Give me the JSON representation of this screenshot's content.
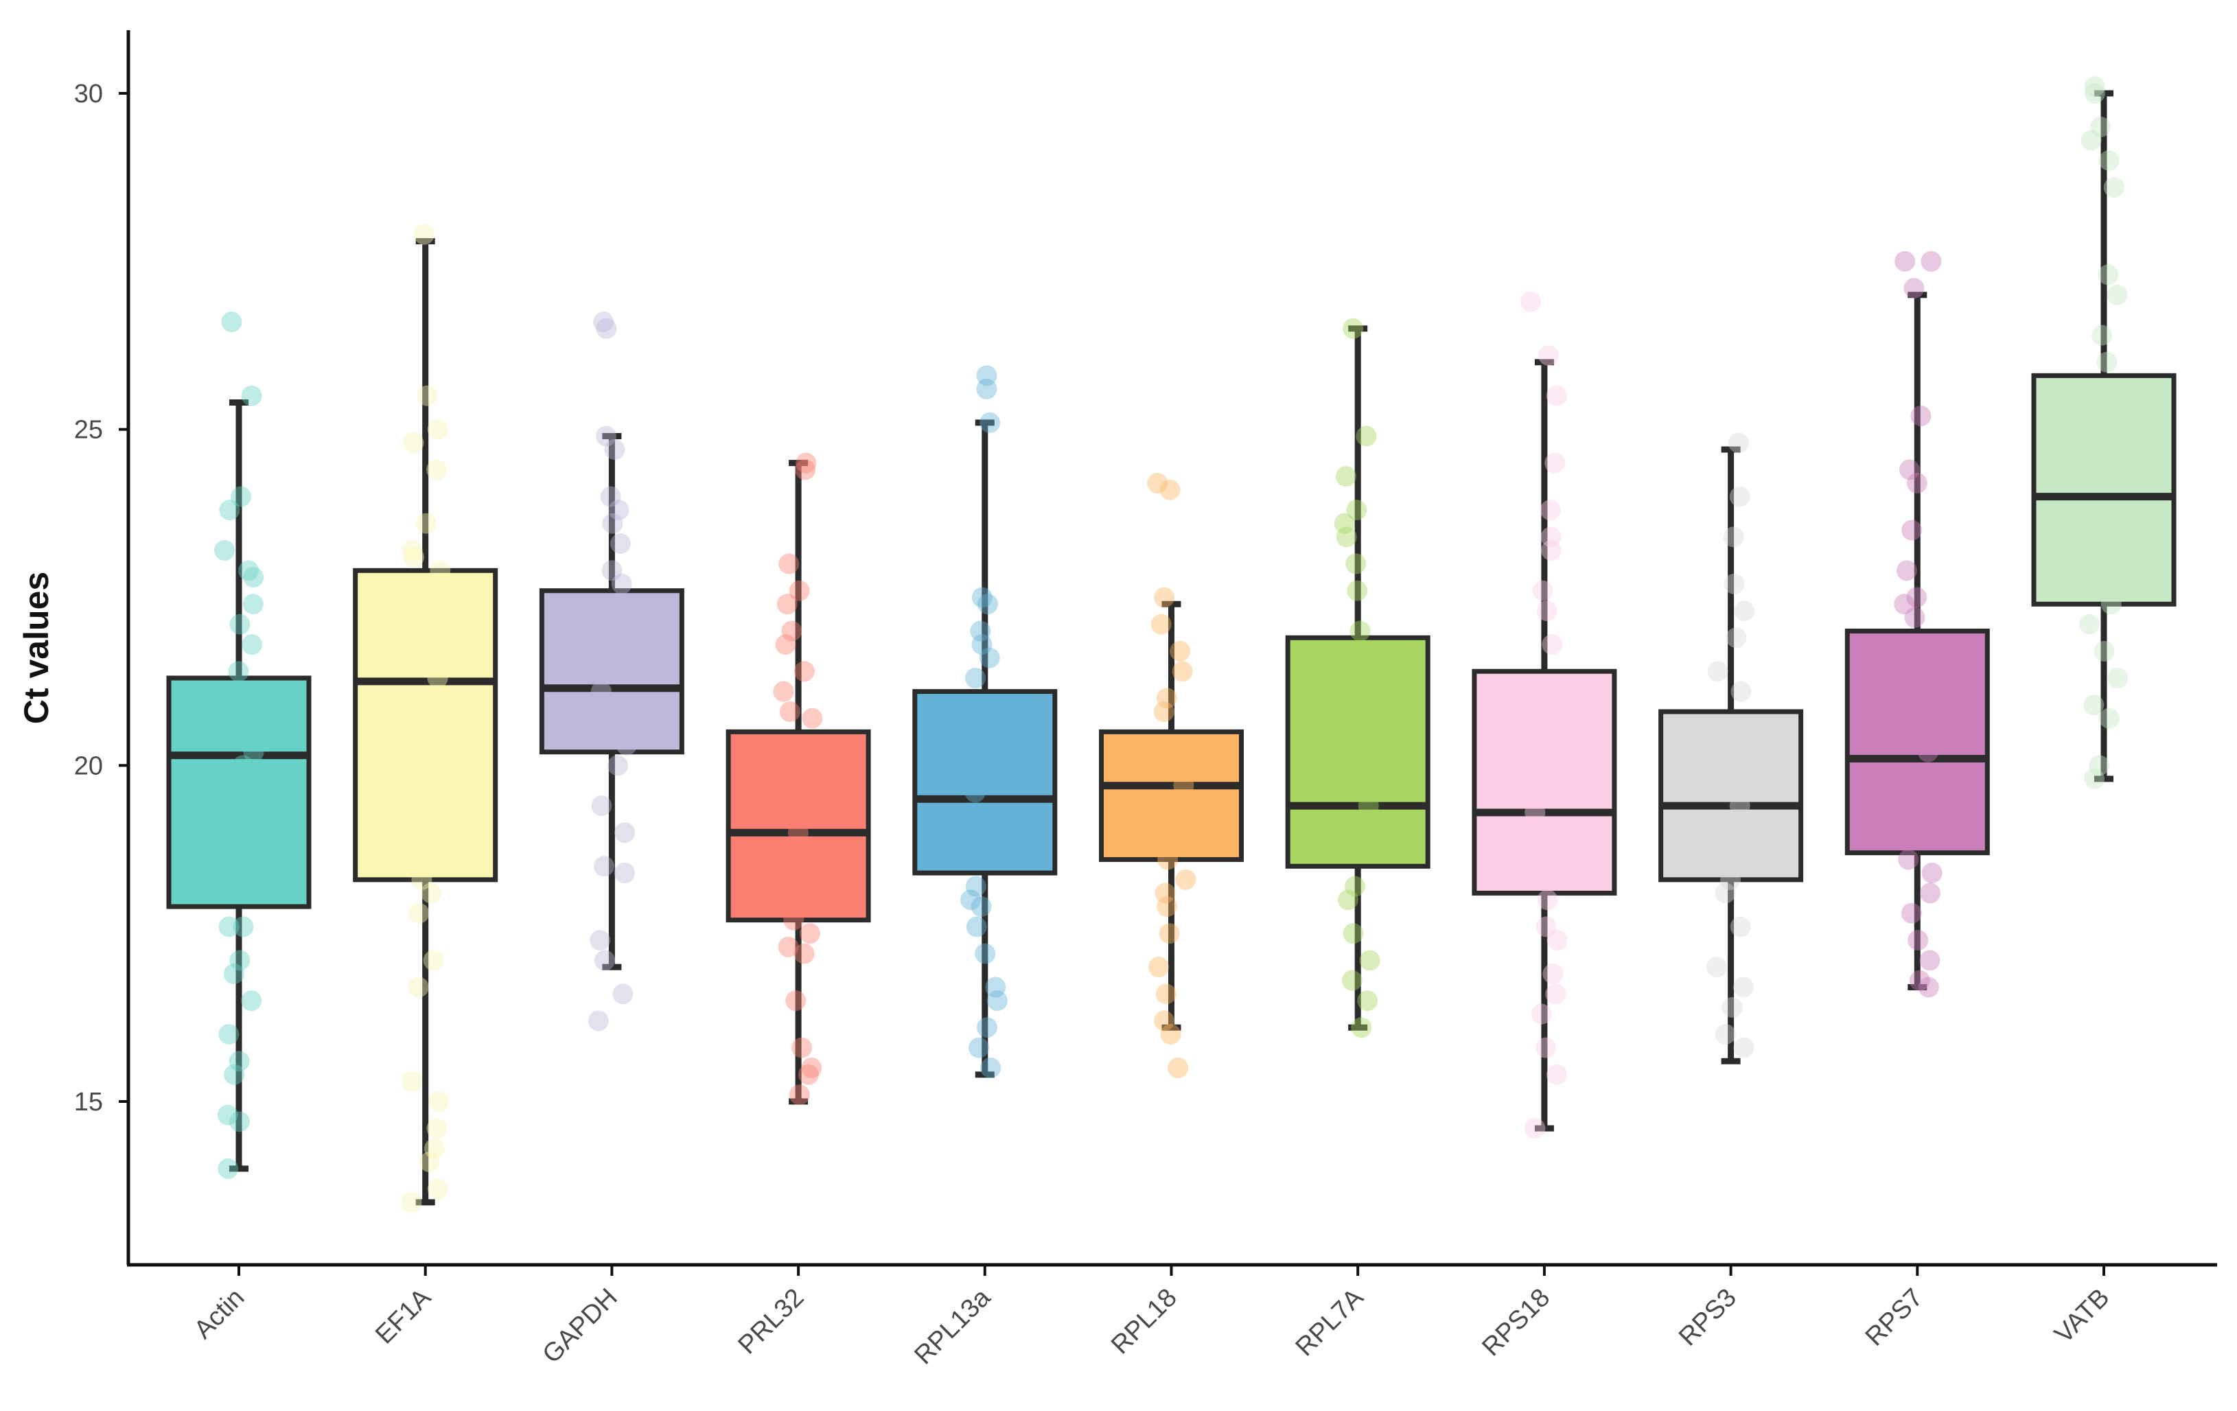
{
  "chart_data": {
    "type": "box",
    "title": "",
    "xlabel": "",
    "ylabel": "Ct values",
    "ylim": [
      12.5,
      31
    ],
    "yticks": [
      15,
      20,
      25,
      30
    ],
    "categories": [
      "Actin",
      "EF1A",
      "GAPDH",
      "PRL32",
      "RPL13a",
      "RPL18",
      "RPL7A",
      "RPS18",
      "RPS3",
      "RPS7",
      "VATB"
    ],
    "colors": [
      "#66d1c6",
      "#fbf6b2",
      "#beb8da",
      "#fb8072",
      "#64b2d6",
      "#fdb462",
      "#a6d65f",
      "#fccde5",
      "#d9d9d9",
      "#ca7fbb",
      "#c6e8c4"
    ],
    "boxes": [
      {
        "name": "Actin",
        "whisker_low": 14.0,
        "q1": 17.9,
        "median": 20.15,
        "q3": 21.3,
        "whisker_high": 25.4
      },
      {
        "name": "EF1A",
        "whisker_low": 13.5,
        "q1": 18.3,
        "median": 21.25,
        "q3": 22.9,
        "whisker_high": 27.8
      },
      {
        "name": "GAPDH",
        "whisker_low": 17.0,
        "q1": 20.2,
        "median": 21.15,
        "q3": 22.6,
        "whisker_high": 24.9
      },
      {
        "name": "PRL32",
        "whisker_low": 15.0,
        "q1": 17.7,
        "median": 19.0,
        "q3": 20.5,
        "whisker_high": 24.5
      },
      {
        "name": "RPL13a",
        "whisker_low": 15.4,
        "q1": 18.4,
        "median": 19.5,
        "q3": 21.1,
        "whisker_high": 25.1
      },
      {
        "name": "RPL18",
        "whisker_low": 16.1,
        "q1": 18.6,
        "median": 19.7,
        "q3": 20.5,
        "whisker_high": 22.4
      },
      {
        "name": "RPL7A",
        "whisker_low": 16.1,
        "q1": 18.5,
        "median": 19.4,
        "q3": 21.9,
        "whisker_high": 26.5
      },
      {
        "name": "RPS18",
        "whisker_low": 14.6,
        "q1": 18.1,
        "median": 19.3,
        "q3": 21.4,
        "whisker_high": 26.0
      },
      {
        "name": "RPS3",
        "whisker_low": 15.6,
        "q1": 18.3,
        "median": 19.4,
        "q3": 20.8,
        "whisker_high": 24.7
      },
      {
        "name": "RPS7",
        "whisker_low": 16.7,
        "q1": 18.7,
        "median": 20.1,
        "q3": 22.0,
        "whisker_high": 27.0
      },
      {
        "name": "VATB",
        "whisker_low": 19.8,
        "q1": 22.4,
        "median": 24.0,
        "q3": 25.8,
        "whisker_high": 30.0
      }
    ],
    "points": [
      [
        26.6,
        25.5,
        24.0,
        23.8,
        23.2,
        22.9,
        22.8,
        22.4,
        22.1,
        21.8,
        21.4,
        20.2,
        20.0,
        17.6,
        17.6,
        17.1,
        16.9,
        16.5,
        16.0,
        15.6,
        15.4,
        14.8,
        14.7,
        14.0
      ],
      [
        27.9,
        25.5,
        25.0,
        24.8,
        24.4,
        23.6,
        23.2,
        23.1,
        22.9,
        21.3,
        18.3,
        18.1,
        17.8,
        17.1,
        16.7,
        15.3,
        15.0,
        14.6,
        14.3,
        14.1,
        13.7,
        13.5
      ],
      [
        26.6,
        26.5,
        24.9,
        24.7,
        24.0,
        23.8,
        23.6,
        23.3,
        22.9,
        22.7,
        22.1,
        21.1,
        20.8,
        20.3,
        20.0,
        19.4,
        19.0,
        18.5,
        18.4,
        17.4,
        17.1,
        16.6,
        16.2
      ],
      [
        24.5,
        24.4,
        23.0,
        22.6,
        22.4,
        22.0,
        21.8,
        21.4,
        21.1,
        20.8,
        20.7,
        19.0,
        17.7,
        17.5,
        17.3,
        17.2,
        16.5,
        15.8,
        15.5,
        15.4,
        15.1
      ],
      [
        25.8,
        25.6,
        25.1,
        22.5,
        22.4,
        22.0,
        21.8,
        21.6,
        21.3,
        19.6,
        18.2,
        18.0,
        17.9,
        17.6,
        17.2,
        16.7,
        16.5,
        16.1,
        15.8,
        15.5
      ],
      [
        24.2,
        24.1,
        22.5,
        22.1,
        21.7,
        21.4,
        21.0,
        20.8,
        20.3,
        19.7,
        18.6,
        18.3,
        18.1,
        17.9,
        17.5,
        17.0,
        16.6,
        16.2,
        16.0,
        15.5
      ],
      [
        26.5,
        24.9,
        24.3,
        23.8,
        23.6,
        23.4,
        23.0,
        22.6,
        22.0,
        19.4,
        18.2,
        18.0,
        17.5,
        17.1,
        16.8,
        16.5,
        16.1
      ],
      [
        26.9,
        26.1,
        25.5,
        24.5,
        23.8,
        23.4,
        23.2,
        22.6,
        22.3,
        21.8,
        19.3,
        18.0,
        17.6,
        17.4,
        16.9,
        16.6,
        16.3,
        15.8,
        15.4,
        14.6
      ],
      [
        24.8,
        24.0,
        23.4,
        22.7,
        22.3,
        21.9,
        21.4,
        21.1,
        19.4,
        18.3,
        18.1,
        17.6,
        17.0,
        16.7,
        16.4,
        16.0,
        15.8
      ],
      [
        27.5,
        27.5,
        27.1,
        25.2,
        24.4,
        24.2,
        23.5,
        22.9,
        22.5,
        22.4,
        22.2,
        20.2,
        18.6,
        18.4,
        18.1,
        17.8,
        17.4,
        17.1,
        16.8,
        16.7
      ],
      [
        30.1,
        30.0,
        29.5,
        29.3,
        29.0,
        28.6,
        27.3,
        27.0,
        26.4,
        26.0,
        25.3,
        22.4,
        22.1,
        21.7,
        21.3,
        20.9,
        20.7,
        20.0,
        19.8
      ]
    ]
  }
}
